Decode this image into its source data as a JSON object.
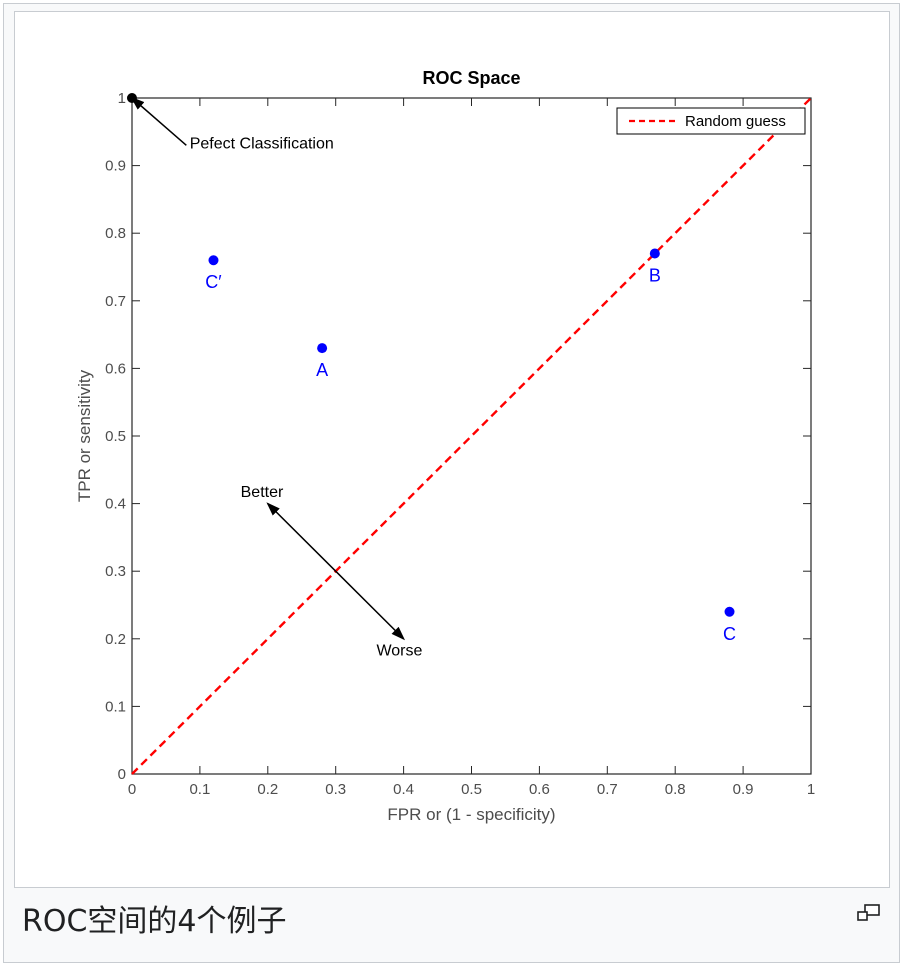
{
  "caption": "ROC空间的4个例子",
  "magnify_icon": "magnify-clip-icon",
  "chart_data": {
    "type": "scatter",
    "title": "ROC Space",
    "xlabel": "FPR or (1 - specificity)",
    "ylabel": "TPR or sensitivity",
    "xlim": [
      0,
      1
    ],
    "ylim": [
      0,
      1
    ],
    "xticks": [
      "0",
      "0.1",
      "0.2",
      "0.3",
      "0.4",
      "0.5",
      "0.6",
      "0.7",
      "0.8",
      "0.9",
      "1"
    ],
    "yticks": [
      "0",
      "0.1",
      "0.2",
      "0.3",
      "0.4",
      "0.5",
      "0.6",
      "0.7",
      "0.8",
      "0.9",
      "1"
    ],
    "grid": false,
    "legend": {
      "position": "top-right",
      "entries": [
        "Random guess"
      ]
    },
    "random_guess_line": {
      "name": "Random guess",
      "x": [
        0,
        1
      ],
      "y": [
        0,
        1
      ],
      "color": "#ff0000",
      "dash": "dashed"
    },
    "points": [
      {
        "label": "A",
        "x": 0.28,
        "y": 0.63,
        "color": "#0000ff"
      },
      {
        "label": "B",
        "x": 0.77,
        "y": 0.77,
        "color": "#0000ff"
      },
      {
        "label": "C",
        "x": 0.88,
        "y": 0.24,
        "color": "#0000ff"
      },
      {
        "label": "C′",
        "x": 0.12,
        "y": 0.76,
        "color": "#0000ff"
      }
    ],
    "perfect_point": {
      "x": 0,
      "y": 1,
      "color": "#000000"
    },
    "annotations": [
      {
        "text": "Pefect Classification",
        "x": 0.085,
        "y": 0.925
      },
      {
        "text": "Better",
        "x": 0.16,
        "y": 0.41
      },
      {
        "text": "Worse",
        "x": 0.36,
        "y": 0.175
      }
    ],
    "arrows": [
      {
        "name": "perfect-arrow",
        "from": [
          0.08,
          0.93
        ],
        "to": [
          0.0,
          1.0
        ]
      },
      {
        "name": "better-arrow",
        "from": [
          0.3,
          0.3
        ],
        "to": [
          0.2,
          0.4
        ]
      },
      {
        "name": "worse-arrow",
        "from": [
          0.3,
          0.3
        ],
        "to": [
          0.4,
          0.2
        ]
      }
    ]
  }
}
